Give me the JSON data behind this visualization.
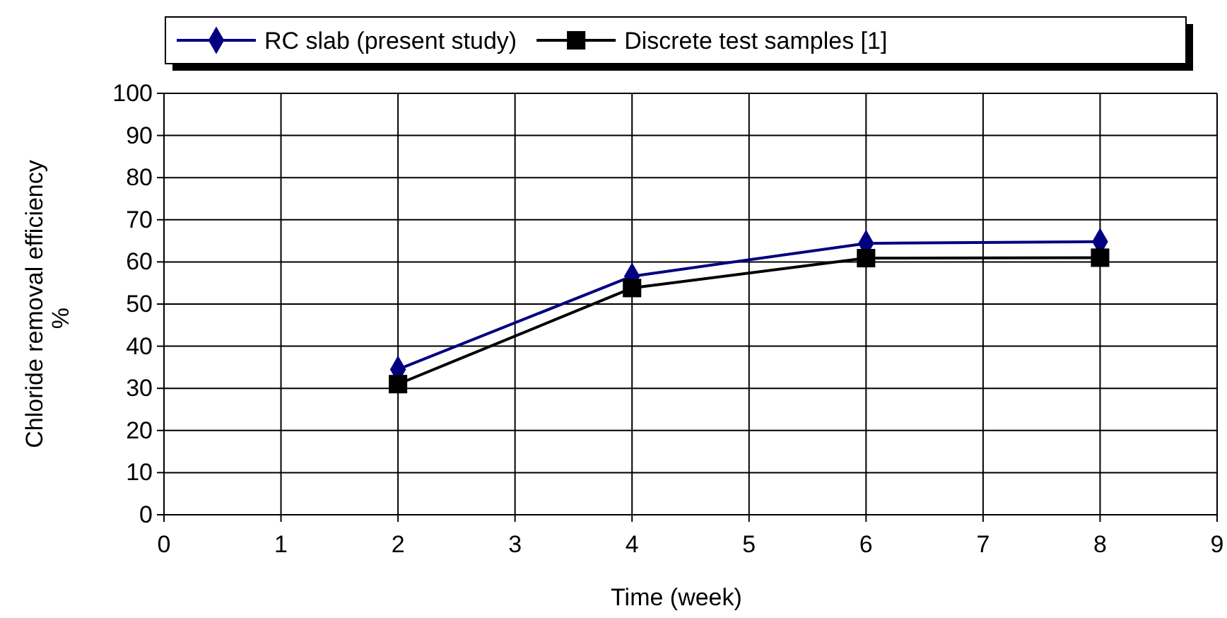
{
  "chart_data": {
    "type": "line",
    "xlabel": "Time (week)",
    "ylabel": "Chloride removal efficiency %",
    "x": [
      2,
      4,
      6,
      8
    ],
    "series": [
      {
        "name": "RC slab (present study)",
        "color": "#000080",
        "marker": "diamond",
        "values": [
          34.5,
          56.6,
          64.4,
          64.8
        ]
      },
      {
        "name": "Discrete test samples [1]",
        "color": "#000000",
        "marker": "square",
        "values": [
          31,
          53.8,
          60.9,
          61
        ]
      }
    ],
    "xlim": [
      0,
      9
    ],
    "xticks": [
      0,
      1,
      2,
      3,
      4,
      5,
      6,
      7,
      8,
      9
    ],
    "ylim": [
      0,
      100
    ],
    "yticks": [
      0,
      10,
      20,
      30,
      40,
      50,
      60,
      70,
      80,
      90,
      100
    ],
    "grid": true,
    "legend": "top",
    "line_style": "solid"
  }
}
